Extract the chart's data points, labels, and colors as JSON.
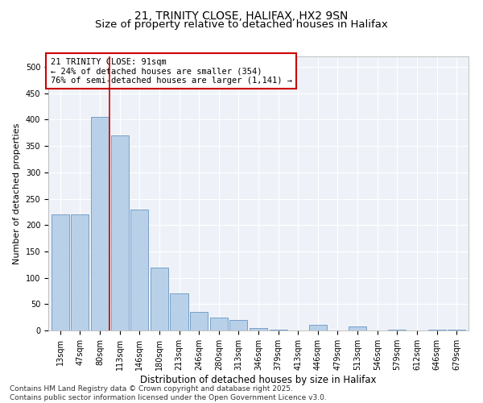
{
  "title1": "21, TRINITY CLOSE, HALIFAX, HX2 9SN",
  "title2": "Size of property relative to detached houses in Halifax",
  "xlabel": "Distribution of detached houses by size in Halifax",
  "ylabel": "Number of detached properties",
  "categories": [
    "13sqm",
    "47sqm",
    "80sqm",
    "113sqm",
    "146sqm",
    "180sqm",
    "213sqm",
    "246sqm",
    "280sqm",
    "313sqm",
    "346sqm",
    "379sqm",
    "413sqm",
    "446sqm",
    "479sqm",
    "513sqm",
    "546sqm",
    "579sqm",
    "612sqm",
    "646sqm",
    "679sqm"
  ],
  "values": [
    220,
    220,
    405,
    370,
    230,
    120,
    70,
    35,
    25,
    20,
    5,
    2,
    0,
    10,
    0,
    8,
    0,
    2,
    0,
    1,
    1
  ],
  "bar_color": "#b8d0e8",
  "bar_edge_color": "#5588bb",
  "background_color": "#eef2f8",
  "ylim": [
    0,
    520
  ],
  "yticks": [
    0,
    50,
    100,
    150,
    200,
    250,
    300,
    350,
    400,
    450,
    500
  ],
  "vline_x": 2.5,
  "vline_color": "#cc0000",
  "annotation_title": "21 TRINITY CLOSE: 91sqm",
  "annotation_line1": "← 24% of detached houses are smaller (354)",
  "annotation_line2": "76% of semi-detached houses are larger (1,141) →",
  "annotation_box_color": "#cc0000",
  "footer1": "Contains HM Land Registry data © Crown copyright and database right 2025.",
  "footer2": "Contains public sector information licensed under the Open Government Licence v3.0.",
  "title1_fontsize": 10,
  "title2_fontsize": 9.5,
  "xlabel_fontsize": 8.5,
  "ylabel_fontsize": 8,
  "tick_fontsize": 7,
  "annotation_fontsize": 7.5,
  "footer_fontsize": 6.5
}
